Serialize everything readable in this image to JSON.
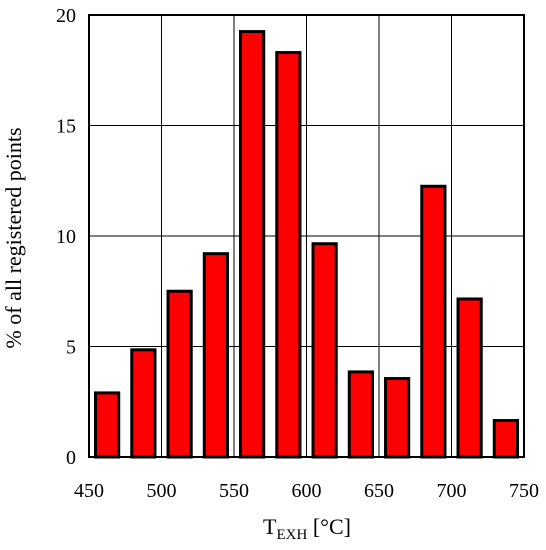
{
  "chart_data": {
    "type": "bar",
    "title": "",
    "xlabel_main": "T",
    "xlabel_sub": "EXH",
    "xlabel_unit": " [°C]",
    "ylabel": "% of all registered points",
    "xlim": [
      450,
      750
    ],
    "ylim": [
      0,
      20
    ],
    "x_ticks": [
      "450",
      "500",
      "550",
      "600",
      "650",
      "700",
      "750"
    ],
    "y_ticks": [
      "0",
      "5",
      "10",
      "15",
      "20"
    ],
    "bar_width": 16,
    "bars": [
      {
        "x": 462.5,
        "value": 2.9
      },
      {
        "x": 487.5,
        "value": 4.85
      },
      {
        "x": 512.5,
        "value": 7.5
      },
      {
        "x": 537.5,
        "value": 9.2
      },
      {
        "x": 562.5,
        "value": 19.25
      },
      {
        "x": 587.5,
        "value": 18.3
      },
      {
        "x": 612.5,
        "value": 9.65
      },
      {
        "x": 637.5,
        "value": 3.85
      },
      {
        "x": 662.5,
        "value": 3.55
      },
      {
        "x": 687.5,
        "value": 12.25
      },
      {
        "x": 712.5,
        "value": 7.15
      },
      {
        "x": 737.5,
        "value": 1.65
      }
    ],
    "grid": true,
    "bar_color": "#ff0000",
    "bar_edge_color": "#000000"
  }
}
